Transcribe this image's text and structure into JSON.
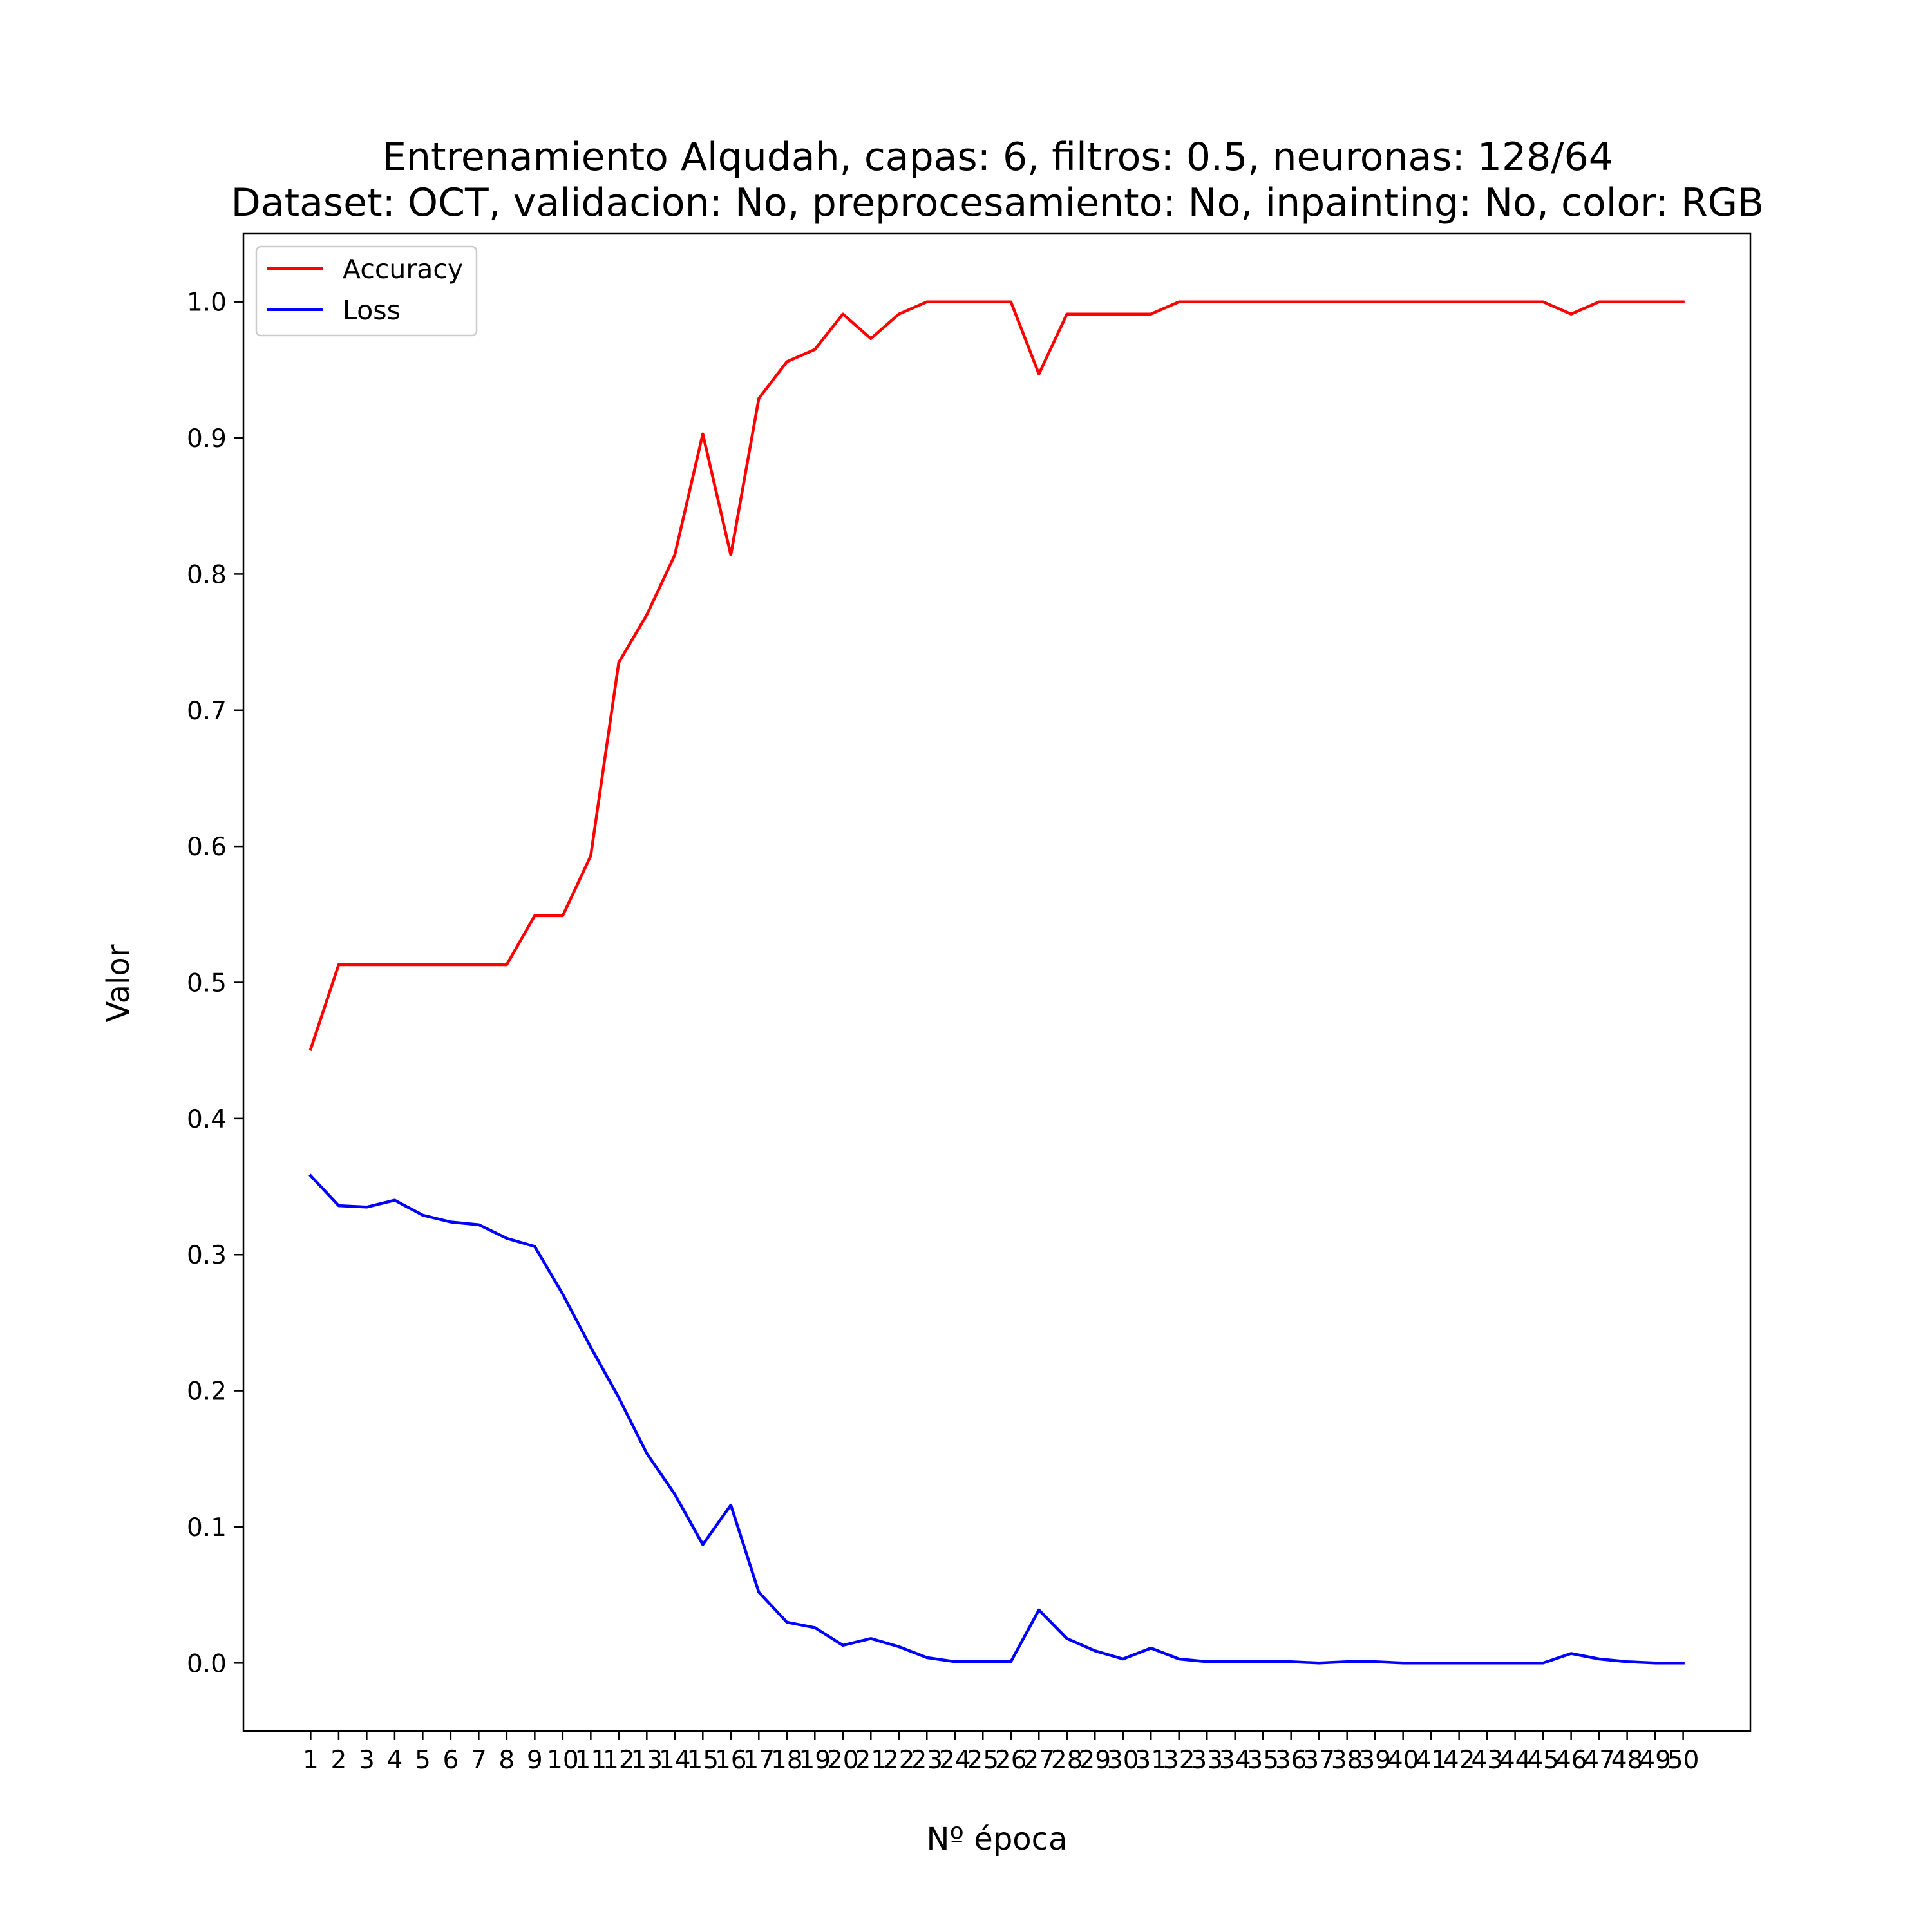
{
  "chart_data": {
    "type": "line",
    "title": "Entrenamiento Alqudah, capas: 6, filtros: 0.5, neuronas: 128/64",
    "subtitle": "Dataset: OCT, validacion: No, preprocesamiento: No, inpainting: No, color: RGB",
    "xlabel": "Nº época",
    "ylabel": "Valor",
    "xlim": [
      -1.4,
      52.4
    ],
    "ylim": [
      -0.05,
      1.05
    ],
    "grid": false,
    "legend_position": "top-left",
    "x": [
      1,
      2,
      3,
      4,
      5,
      6,
      7,
      8,
      9,
      10,
      11,
      12,
      13,
      14,
      15,
      16,
      17,
      18,
      19,
      20,
      21,
      22,
      23,
      24,
      25,
      26,
      27,
      28,
      29,
      30,
      31,
      32,
      33,
      34,
      35,
      36,
      37,
      38,
      39,
      40,
      41,
      42,
      43,
      44,
      45,
      46,
      47,
      48,
      49,
      50
    ],
    "x_tick_labels": [
      "1",
      "2",
      "3",
      "4",
      "5",
      "6",
      "7",
      "8",
      "9",
      "10",
      "11",
      "12",
      "13",
      "14",
      "15",
      "16",
      "17",
      "18",
      "19",
      "20",
      "21",
      "22",
      "23",
      "24",
      "25",
      "26",
      "27",
      "28",
      "29",
      "30",
      "31",
      "32",
      "33",
      "34",
      "35",
      "36",
      "37",
      "38",
      "39",
      "40",
      "41",
      "42",
      "43",
      "44",
      "45",
      "46",
      "47",
      "48",
      "49",
      "50"
    ],
    "y_ticks": [
      0.0,
      0.1,
      0.2,
      0.3,
      0.4,
      0.5,
      0.6,
      0.7,
      0.8,
      0.9,
      1.0
    ],
    "y_tick_labels": [
      "0.0",
      "0.1",
      "0.2",
      "0.3",
      "0.4",
      "0.5",
      "0.6",
      "0.7",
      "0.8",
      "0.9",
      "1.0"
    ],
    "series": [
      {
        "name": "Accuracy",
        "color": "#ff0000",
        "values": [
          0.451,
          0.513,
          0.513,
          0.513,
          0.513,
          0.513,
          0.513,
          0.513,
          0.549,
          0.549,
          0.593,
          0.735,
          0.77,
          0.814,
          0.903,
          0.814,
          0.929,
          0.956,
          0.965,
          0.991,
          0.973,
          0.991,
          1.0,
          1.0,
          1.0,
          1.0,
          0.947,
          0.991,
          0.991,
          0.991,
          0.991,
          1.0,
          1.0,
          1.0,
          1.0,
          1.0,
          1.0,
          1.0,
          1.0,
          1.0,
          1.0,
          1.0,
          1.0,
          1.0,
          1.0,
          0.991,
          1.0,
          1.0,
          1.0,
          1.0
        ]
      },
      {
        "name": "Loss",
        "color": "#0000ff",
        "values": [
          0.358,
          0.336,
          0.335,
          0.34,
          0.329,
          0.324,
          0.322,
          0.312,
          0.306,
          0.271,
          0.232,
          0.195,
          0.154,
          0.124,
          0.087,
          0.116,
          0.052,
          0.03,
          0.026,
          0.013,
          0.018,
          0.012,
          0.004,
          0.001,
          0.001,
          0.001,
          0.039,
          0.018,
          0.009,
          0.003,
          0.011,
          0.003,
          0.001,
          0.001,
          0.001,
          0.001,
          0.0,
          0.001,
          0.001,
          0.0,
          0.0,
          0.0,
          0.0,
          0.0,
          0.0,
          0.007,
          0.003,
          0.001,
          0.0,
          0.0
        ]
      }
    ]
  }
}
